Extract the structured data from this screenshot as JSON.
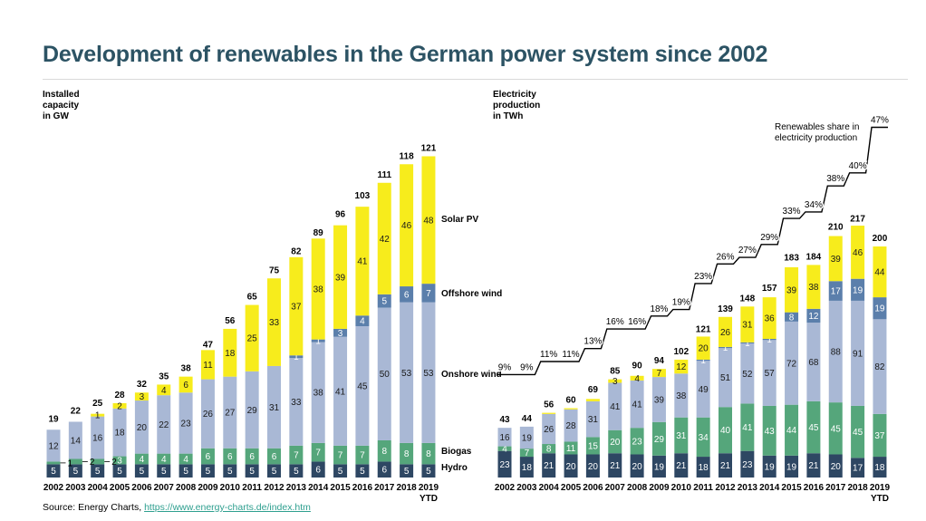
{
  "title": "Development of renewables in the German power system since 2002",
  "source": {
    "prefix": "Source: Energy Charts, ",
    "link": "https://www.energy-charts.de/index.htm"
  },
  "colors": {
    "hydro": "#2e4763",
    "biogas": "#55a67b",
    "onshore": "#a9b8d5",
    "offshore": "#5b7fab",
    "solar": "#f7ec1c"
  },
  "chart_data": [
    {
      "type": "bar",
      "stacked": true,
      "ylabel": "Installed\ncapacity\nin GW",
      "categories": [
        "2002",
        "2003",
        "2004",
        "2005",
        "2006",
        "2007",
        "2008",
        "2009",
        "2010",
        "2011",
        "2012",
        "2013",
        "2014",
        "2015",
        "2016",
        "2017",
        "2018",
        "2019"
      ],
      "category_sublabels": {
        "2019": "YTD"
      },
      "series": [
        {
          "name": "Hydro",
          "values": [
            5,
            5,
            5,
            5,
            5,
            5,
            5,
            5,
            5,
            5,
            5,
            5,
            6,
            5,
            5,
            6,
            5,
            5
          ]
        },
        {
          "name": "Biogas",
          "values": [
            1,
            2,
            2,
            3,
            4,
            4,
            4,
            6,
            6,
            6,
            6,
            7,
            7,
            7,
            7,
            8,
            8,
            8
          ]
        },
        {
          "name": "Onshore wind",
          "values": [
            12,
            14,
            16,
            18,
            20,
            22,
            23,
            26,
            27,
            29,
            31,
            33,
            38,
            41,
            45,
            50,
            53,
            53
          ]
        },
        {
          "name": "Offshore wind",
          "values": [
            0,
            0,
            0,
            0,
            0,
            0,
            0,
            0,
            0,
            0,
            0,
            1,
            1,
            3,
            4,
            5,
            6,
            7
          ]
        },
        {
          "name": "Solar PV",
          "values": [
            0,
            0,
            1,
            2,
            3,
            4,
            6,
            11,
            18,
            25,
            33,
            37,
            38,
            39,
            41,
            42,
            46,
            48
          ]
        }
      ],
      "totals": [
        19,
        22,
        25,
        28,
        32,
        35,
        38,
        47,
        56,
        65,
        75,
        82,
        89,
        96,
        103,
        111,
        118,
        121
      ],
      "ylim": [
        0,
        130
      ],
      "legend": "right, inline labels"
    },
    {
      "type": "bar",
      "stacked": true,
      "ylabel": "Electricity\nproduction\nin TWh",
      "categories": [
        "2002",
        "2003",
        "2004",
        "2005",
        "2006",
        "2007",
        "2008",
        "2009",
        "2010",
        "2011",
        "2012",
        "2013",
        "2014",
        "2015",
        "2016",
        "2017",
        "2018",
        "2019"
      ],
      "category_sublabels": {
        "2019": "YTD"
      },
      "series": [
        {
          "name": "Hydro",
          "values": [
            23,
            18,
            21,
            20,
            20,
            21,
            20,
            19,
            21,
            18,
            21,
            23,
            19,
            19,
            21,
            20,
            17,
            18
          ]
        },
        {
          "name": "Biogas",
          "values": [
            4,
            7,
            8,
            11,
            15,
            20,
            23,
            29,
            31,
            34,
            40,
            41,
            43,
            44,
            45,
            45,
            45,
            37
          ]
        },
        {
          "name": "Onshore wind",
          "values": [
            16,
            19,
            26,
            28,
            31,
            41,
            41,
            39,
            38,
            49,
            51,
            52,
            57,
            72,
            68,
            88,
            91,
            82
          ]
        },
        {
          "name": "Offshore wind",
          "values": [
            0,
            0,
            0,
            0,
            0,
            0,
            0,
            0,
            0,
            1,
            1,
            1,
            1,
            8,
            12,
            17,
            19,
            19
          ]
        },
        {
          "name": "Solar PV",
          "values": [
            0,
            0,
            1,
            1,
            2,
            3,
            4,
            7,
            12,
            20,
            26,
            31,
            36,
            39,
            38,
            39,
            46,
            44
          ]
        }
      ],
      "totals": [
        43,
        44,
        56,
        60,
        69,
        85,
        90,
        94,
        102,
        121,
        139,
        148,
        157,
        183,
        184,
        210,
        217,
        200
      ],
      "share_line": {
        "name": "Renewables share in electricity production",
        "values": [
          9,
          9,
          11,
          11,
          13,
          16,
          16,
          18,
          19,
          23,
          26,
          27,
          29,
          33,
          34,
          38,
          40,
          47
        ],
        "labels": [
          "9%",
          "9%",
          "11%",
          "11%",
          "13%",
          "16%",
          "16%",
          "18%",
          "19%",
          "23%",
          "26%",
          "27%",
          "29%",
          "33%",
          "34%",
          "38%",
          "40%",
          "47%"
        ]
      },
      "ylim": [
        0,
        230
      ]
    }
  ]
}
